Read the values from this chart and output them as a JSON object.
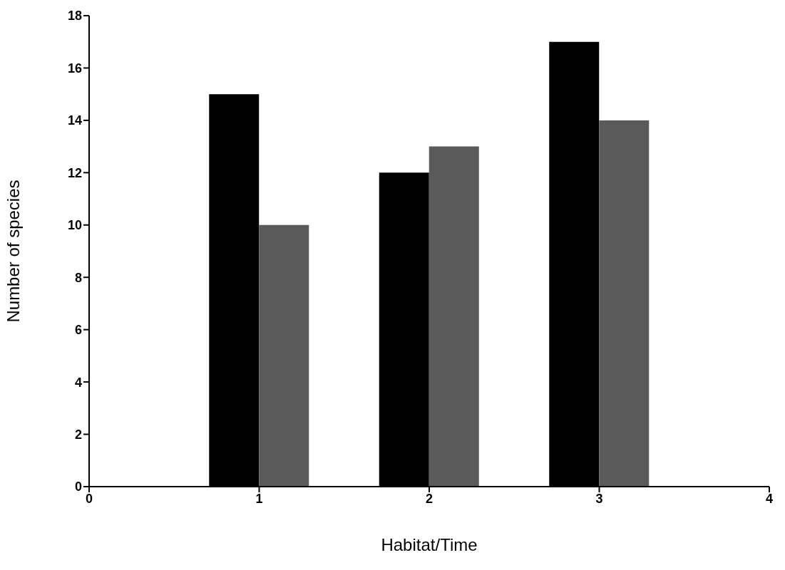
{
  "chart_data": {
    "type": "bar",
    "xlabel": "Habitat/Time",
    "ylabel": "Number of species",
    "x": [
      1,
      2,
      3
    ],
    "series": [
      {
        "color": "#000000",
        "values": [
          15,
          12,
          17
        ]
      },
      {
        "color": "#5a5a5a",
        "values": [
          10,
          13,
          14
        ]
      }
    ],
    "xlim": [
      0,
      4
    ],
    "xticks": [
      0,
      1,
      2,
      3,
      4
    ],
    "ylim": [
      0,
      18
    ],
    "yticks": [
      0,
      2,
      4,
      6,
      8,
      10,
      12,
      14,
      16,
      18
    ],
    "grid": false,
    "legend": false
  }
}
